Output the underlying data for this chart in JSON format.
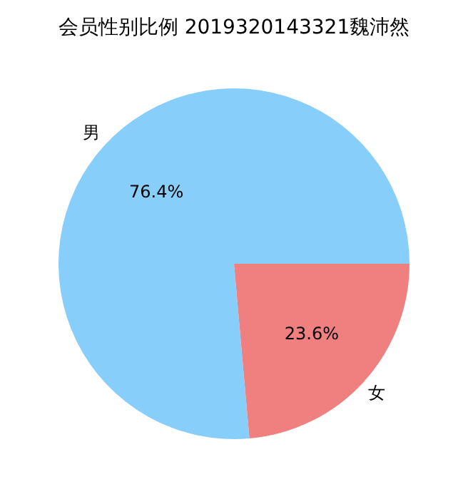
{
  "chart_data": {
    "type": "pie",
    "title": "会员性别比例 2019320143321魏沛然",
    "categories": [
      "男",
      "女"
    ],
    "values": [
      76.4,
      23.6
    ],
    "colors": [
      "#87cefa",
      "#f08080"
    ],
    "value_labels": [
      "76.4%",
      "23.6%"
    ],
    "legend": false
  }
}
